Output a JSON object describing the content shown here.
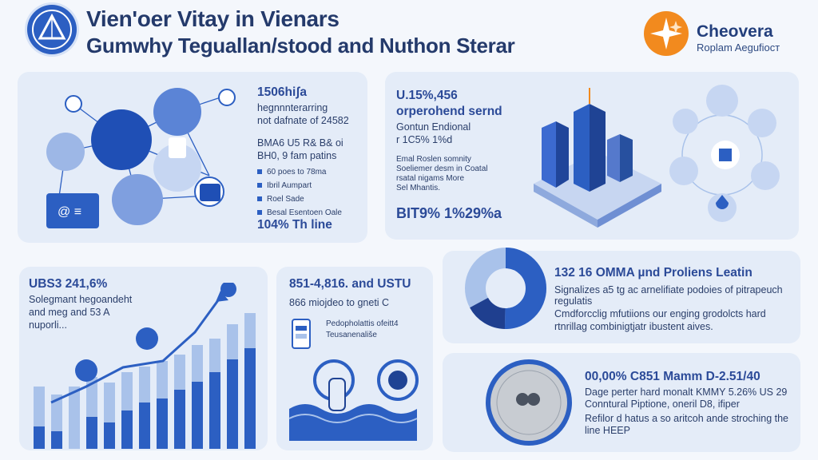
{
  "header": {
    "title_line1": "Vien'oer Vitay in Vienars",
    "title_line2": "Gumwhy Teguallan/stood and Nuthon Sterar",
    "brand_name": "Cheovera",
    "brand_tagline": "Roplam Aegufiост"
  },
  "panel_top_left": {
    "heading": "1506hiʃa",
    "lines": [
      "hegnnnterarring",
      "not dafnate of 24582"
    ],
    "sub": [
      "BMA6 U5 R& B& oi",
      "BH0, 9 fam patins"
    ],
    "bullets": [
      "60 poes to 78ma",
      "Ibril Aumpart",
      "Roel Sade",
      "Besal Esentoen Oale"
    ],
    "footer": "104% Th line"
  },
  "panel_top_right": {
    "heading": "U.15%,456",
    "lines": [
      "orperohend sernd",
      "Gontun Endional",
      "r 1C5% 1%d"
    ],
    "notes": [
      "Emal Roslen somnity",
      "Soeliemer desm in Coatal",
      "rsatal nigams More",
      "Sel Mhantis."
    ],
    "footer": "BIT\u00129% 1%29%a"
  },
  "panel_bars": {
    "heading": "UBS3 241,6%",
    "lines": [
      "Solegmant hegoandeht",
      "and meg and 53 A",
      "nuporli..."
    ]
  },
  "panel_middle": {
    "heading": "851-4,816. and USTU",
    "line": "866 miojdeo to gneti C",
    "note_lines": [
      "Pedopholattis ofeitt4",
      "Teusanenališe"
    ]
  },
  "panel_donut": {
    "heading": "132 16 OMMA µnd Proliens Leatin",
    "lines": [
      "Signalizes a5 tg ac arnelifiate podoies of pitrapeuch",
      "regulatis",
      "Cmdforcclig mfutiions our enging grodolcts hard",
      "rtnrillag combinigtjatr ibustent aives."
    ]
  },
  "panel_map": {
    "heading": "00,00% C851 Mamm D-2.51/40",
    "lines": [
      "Dage perter hard monalt KMMY 5.26% US 29",
      "Conntural Piptione, oneril D8, ifiper",
      "Refilor d hatus a so aritcoh ande stroching the",
      "line HEEP"
    ]
  },
  "colors": {
    "accent": "#2c5fc2",
    "dark": "#1f3f8f",
    "light": "#a9c2ea",
    "panel": "#e4ecf8",
    "orange": "#f28a1e"
  }
}
